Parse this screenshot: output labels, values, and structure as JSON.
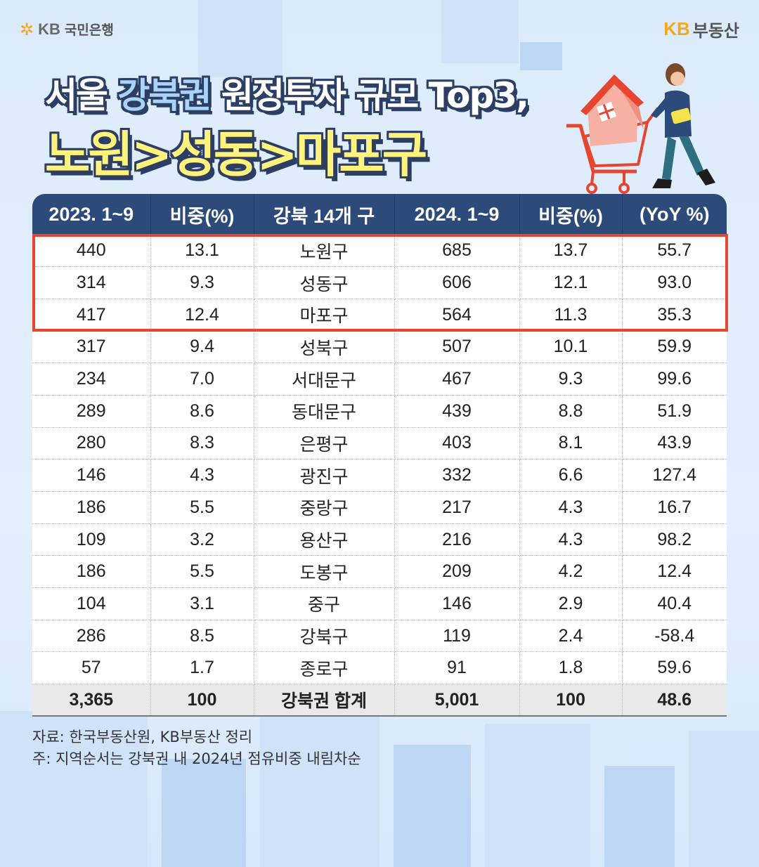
{
  "header": {
    "left_logo_kb": "KB",
    "left_logo_text": "국민은행",
    "right_logo_kb": "KB",
    "right_logo_text": "부동산"
  },
  "title": {
    "line1_prefix": "서울 ",
    "line1_highlight": "강북권",
    "line1_suffix": " 원정투자 규모 Top3,",
    "line2": "노원>성동>마포구"
  },
  "table": {
    "headers": [
      "2023. 1~9",
      "비중(%)",
      "강북 14개 구",
      "2024. 1~9",
      "비중(%)",
      "(YoY %)"
    ],
    "rows": [
      [
        "440",
        "13.1",
        "노원구",
        "685",
        "13.7",
        "55.7"
      ],
      [
        "314",
        "9.3",
        "성동구",
        "606",
        "12.1",
        "93.0"
      ],
      [
        "417",
        "12.4",
        "마포구",
        "564",
        "11.3",
        "35.3"
      ],
      [
        "317",
        "9.4",
        "성북구",
        "507",
        "10.1",
        "59.9"
      ],
      [
        "234",
        "7.0",
        "서대문구",
        "467",
        "9.3",
        "99.6"
      ],
      [
        "289",
        "8.6",
        "동대문구",
        "439",
        "8.8",
        "51.9"
      ],
      [
        "280",
        "8.3",
        "은평구",
        "403",
        "8.1",
        "43.9"
      ],
      [
        "146",
        "4.3",
        "광진구",
        "332",
        "6.6",
        "127.4"
      ],
      [
        "186",
        "5.5",
        "중랑구",
        "217",
        "4.3",
        "16.7"
      ],
      [
        "109",
        "3.2",
        "용산구",
        "216",
        "4.3",
        "98.2"
      ],
      [
        "186",
        "5.5",
        "도봉구",
        "209",
        "4.2",
        "12.4"
      ],
      [
        "104",
        "3.1",
        "중구",
        "146",
        "2.9",
        "40.4"
      ],
      [
        "286",
        "8.5",
        "강북구",
        "119",
        "2.4",
        "-58.4"
      ],
      [
        "57",
        "1.7",
        "종로구",
        "91",
        "1.8",
        "59.6"
      ]
    ],
    "total": [
      "3,365",
      "100",
      "강북권 합계",
      "5,001",
      "100",
      "48.6"
    ],
    "highlight_color": "#e8452f",
    "header_color": "#2c4a7a"
  },
  "notes": {
    "source": "자료: 한국부동산원, KB부동산 정리",
    "note": "주: 지역순서는 강북권 내 2024년 점유비중 내림차순"
  }
}
